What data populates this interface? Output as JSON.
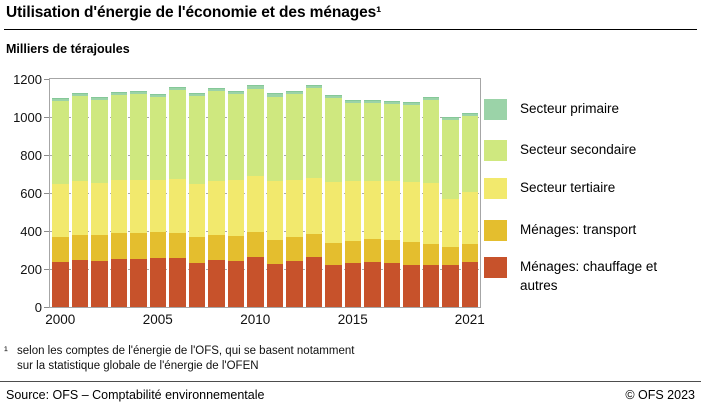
{
  "header": {
    "title": "Utilisation d'énergie de l'économie et des ménages¹",
    "subtitle": "Milliers de térajoules"
  },
  "chart_data": {
    "type": "bar",
    "stacked": true,
    "title": "Utilisation d'énergie de l'économie et des ménages¹",
    "unit_label": "Milliers de térajoules",
    "ylim": [
      0,
      1200
    ],
    "ytick_step": 200,
    "ytick_labels": [
      "0",
      "200",
      "400",
      "600",
      "800",
      "1000",
      "1200"
    ],
    "grid": "horizontal-dashed",
    "legend_position": "right",
    "categories": [
      2000,
      2001,
      2002,
      2003,
      2004,
      2005,
      2006,
      2007,
      2008,
      2009,
      2010,
      2011,
      2012,
      2013,
      2014,
      2015,
      2016,
      2017,
      2018,
      2019,
      2020,
      2021
    ],
    "xtick_labels": [
      "2000",
      "2005",
      "2010",
      "2015",
      "2021"
    ],
    "xtick_indices": [
      0,
      5,
      10,
      15,
      21
    ],
    "series": [
      {
        "name": "Ménages: chauffage et autres",
        "color": "#c7522b",
        "values": [
          235,
          246,
          242,
          252,
          254,
          259,
          256,
          234,
          246,
          244,
          266,
          226,
          244,
          261,
          220,
          230,
          239,
          234,
          221,
          223,
          223,
          237
        ]
      },
      {
        "name": "Ménages: transport",
        "color": "#e4be2e",
        "values": [
          133,
          135,
          136,
          135,
          136,
          136,
          134,
          132,
          131,
          130,
          129,
          129,
          125,
          125,
          118,
          120,
          121,
          121,
          122,
          111,
          92,
          95
        ]
      },
      {
        "name": "Secteur tertiaire",
        "color": "#f2e96d",
        "values": [
          282,
          282,
          277,
          280,
          281,
          272,
          282,
          280,
          285,
          293,
          293,
          308,
          299,
          292,
          320,
          311,
          303,
          307,
          315,
          319,
          256,
          274
        ]
      },
      {
        "name": "Secteur secondaire",
        "color": "#cfe87f",
        "values": [
          435,
          447,
          435,
          447,
          449,
          439,
          468,
          466,
          476,
          455,
          462,
          445,
          453,
          472,
          444,
          415,
          413,
          409,
          404,
          435,
          414,
          400
        ]
      },
      {
        "name": "Secteur primaire",
        "color": "#9bd3a8",
        "values": [
          15,
          17,
          17,
          17,
          16,
          16,
          17,
          16,
          17,
          16,
          17,
          17,
          17,
          19,
          15,
          15,
          15,
          15,
          15,
          15,
          14,
          15
        ]
      }
    ],
    "totals": [
      1100,
      1127,
      1107,
      1131,
      1136,
      1122,
      1157,
      1128,
      1155,
      1138,
      1167,
      1125,
      1138,
      1169,
      1117,
      1091,
      1091,
      1086,
      1077,
      1103,
      999,
      1021
    ]
  },
  "legend_labels": [
    "Secteur primaire",
    "Secteur secondaire",
    "Secteur tertiaire",
    "Ménages: transport",
    "Ménages: chauffage et autres"
  ],
  "footnote": {
    "marker": "¹",
    "line1": "selon les comptes de l'énergie de l'OFS, qui se basent notamment",
    "line2": "sur la statistique globale de l'énergie de l'OFEN"
  },
  "footer": {
    "source": "Source: OFS – Comptabilité environnementale",
    "copyright": "© OFS 2023"
  }
}
